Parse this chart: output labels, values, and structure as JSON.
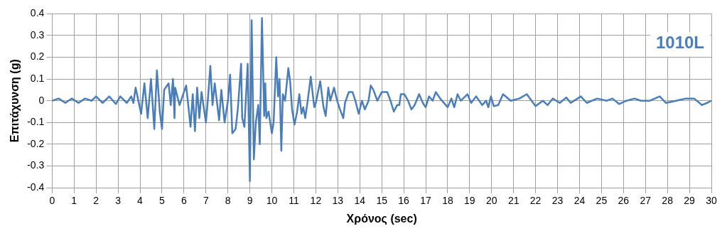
{
  "chart_data": {
    "type": "line",
    "xlabel": "Χρόνος (sec)",
    "ylabel": "Επιτάχυνση (g)",
    "annotations": [
      "1010L"
    ],
    "x": [
      0,
      0.3,
      0.6,
      0.9,
      1.2,
      1.5,
      1.8,
      2.0,
      2.3,
      2.6,
      2.9,
      3.1,
      3.4,
      3.6,
      3.7,
      3.8,
      4.05,
      4.2,
      4.35,
      4.5,
      4.65,
      4.77,
      4.9,
      5.0,
      5.1,
      5.3,
      5.4,
      5.5,
      5.57,
      5.6,
      5.8,
      5.9,
      6.1,
      6.3,
      6.4,
      6.5,
      6.6,
      6.7,
      6.8,
      7.0,
      7.1,
      7.2,
      7.3,
      7.4,
      7.6,
      7.7,
      7.85,
      8.0,
      8.1,
      8.2,
      8.35,
      8.45,
      8.6,
      8.65,
      8.75,
      8.9,
      9.0,
      9.08,
      9.18,
      9.27,
      9.38,
      9.45,
      9.55,
      9.65,
      9.7,
      9.75,
      9.85,
      10.0,
      10.08,
      10.2,
      10.28,
      10.35,
      10.43,
      10.5,
      10.6,
      10.75,
      10.83,
      10.92,
      11.03,
      11.15,
      11.25,
      11.35,
      11.43,
      11.52,
      11.63,
      11.77,
      11.93,
      12.0,
      12.2,
      12.35,
      12.45,
      12.57,
      12.66,
      12.83,
      12.97,
      13.1,
      13.25,
      13.33,
      13.5,
      13.67,
      13.8,
      13.95,
      14.1,
      14.23,
      14.4,
      14.5,
      14.62,
      14.8,
      14.9,
      15.0,
      15.25,
      15.4,
      15.55,
      15.7,
      15.8,
      15.87,
      16.03,
      16.2,
      16.35,
      16.5,
      16.7,
      16.87,
      17.0,
      17.15,
      17.32,
      17.46,
      17.66,
      18.0,
      18.17,
      18.3,
      18.45,
      18.6,
      18.9,
      19.07,
      19.3,
      19.57,
      19.75,
      19.85,
      19.97,
      20.1,
      20.3,
      20.52,
      20.87,
      21.26,
      21.6,
      21.82,
      22.0,
      22.33,
      22.55,
      22.78,
      23.1,
      23.4,
      23.6,
      24.06,
      24.33,
      24.8,
      25.24,
      25.5,
      25.8,
      26.14,
      26.5,
      26.8,
      27.2,
      27.65,
      27.93,
      28.4,
      28.83,
      29.22,
      29.57,
      29.8,
      30.0
    ],
    "series": [
      {
        "color": "#4a7ebb",
        "values": [
          0,
          0.01,
          -0.01,
          0.01,
          -0.01,
          0.01,
          0,
          0.02,
          -0.01,
          0.02,
          -0.015,
          0.02,
          -0.01,
          0.02,
          -0.01,
          0.06,
          -0.06,
          0.08,
          -0.08,
          0.1,
          -0.13,
          0.14,
          -0.05,
          -0.13,
          0.05,
          0.08,
          -0.02,
          0.1,
          -0.08,
          0.06,
          -0.02,
          0.01,
          0.07,
          -0.12,
          0.03,
          -0.14,
          0.06,
          -0.08,
          0.04,
          -0.1,
          0.02,
          0.16,
          -0.02,
          0.08,
          -0.09,
          0.05,
          -0.1,
          0,
          0.12,
          -0.15,
          -0.13,
          -0.04,
          0.17,
          -0.08,
          -0.12,
          0.17,
          -0.37,
          0.37,
          -0.27,
          -0.1,
          -0.02,
          -0.2,
          0.38,
          -0.07,
          0.08,
          -0.08,
          -0.05,
          -0.15,
          -0.1,
          0.2,
          0.02,
          0.1,
          -0.23,
          0.03,
          0,
          0.15,
          0.09,
          -0.04,
          -0.11,
          -0.05,
          0.03,
          -0.06,
          -0.03,
          -0.08,
          0,
          0.11,
          -0.03,
          -0.01,
          0.09,
          -0.03,
          -0.07,
          0.06,
          0,
          0.06,
          0,
          -0.04,
          -0.08,
          -0.01,
          0.04,
          0.04,
          0,
          -0.06,
          0,
          -0.04,
          0,
          0.07,
          0.05,
          0,
          0.02,
          0.04,
          0.04,
          0,
          -0.05,
          -0.02,
          -0.02,
          0.03,
          0.03,
          0,
          -0.04,
          -0.02,
          0.03,
          -0.01,
          -0.03,
          0.02,
          0,
          0.04,
          0.01,
          -0.03,
          0.01,
          -0.03,
          0.03,
          0,
          0.03,
          -0.01,
          0.02,
          -0.02,
          0,
          -0.03,
          0.02,
          -0.025,
          -0.02,
          0.03,
          0,
          0.01,
          0.03,
          0,
          -0.025,
          0,
          -0.02,
          0.01,
          -0.01,
          0.015,
          -0.01,
          0.02,
          -0.01,
          0.01,
          0,
          0.01,
          -0.015,
          0,
          0.01,
          0,
          0,
          0.02,
          -0.01,
          0,
          0.01,
          0.01,
          -0.02,
          -0.01,
          0
        ]
      }
    ],
    "xlim": [
      0,
      30
    ],
    "xticks": [
      0,
      1,
      2,
      3,
      4,
      5,
      6,
      7,
      8,
      9,
      10,
      11,
      12,
      13,
      14,
      15,
      16,
      17,
      18,
      19,
      20,
      21,
      22,
      23,
      24,
      25,
      26,
      27,
      28,
      29,
      30
    ],
    "ylim": [
      -0.4,
      0.4
    ],
    "yticks": [
      -0.4,
      -0.3,
      -0.2,
      -0.1,
      0,
      0.1,
      0.2,
      0.3,
      0.4
    ],
    "grid": true,
    "legend": false,
    "marker": "none",
    "line_style": "solid"
  }
}
